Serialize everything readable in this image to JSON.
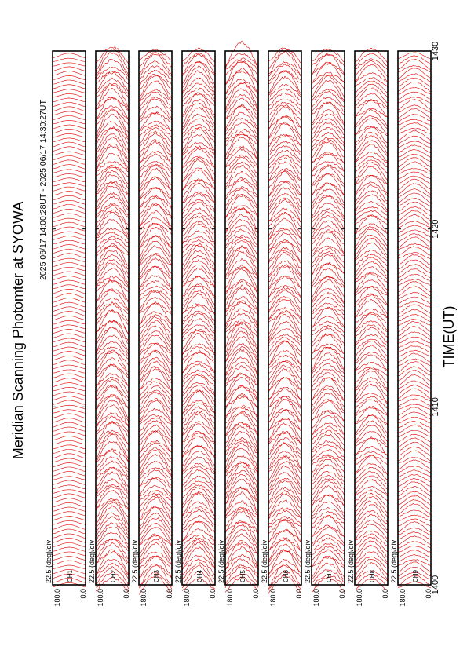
{
  "chart_data": {
    "type": "line",
    "title": "Meridian Scanning Photomter at SYOWA",
    "xlabel": "TIME(UT)",
    "time_range": "2025 06/17 14:00:28UT - 2025 06/17 14:30:27UT",
    "x_ticks": [
      "1400",
      "1410",
      "1420",
      "1430"
    ],
    "xlim": [
      1400,
      1430
    ],
    "ylim": [
      0.0,
      180.0
    ],
    "y_ticks": [
      "180.0",
      "0.0"
    ],
    "scale_label": "22.5 (deg)/div",
    "trace_color": "#e00000",
    "panels": [
      {
        "channel": "1",
        "amplitude": 0.05,
        "peak": 0.5
      },
      {
        "channel": "2",
        "amplitude": 0.55,
        "peak": 0.85
      },
      {
        "channel": "3",
        "amplitude": 0.5,
        "peak": 0.75
      },
      {
        "channel": "4",
        "amplitude": 0.5,
        "peak": 0.8
      },
      {
        "channel": "5",
        "amplitude": 0.6,
        "peak": 0.9
      },
      {
        "channel": "6",
        "amplitude": 0.55,
        "peak": 0.8
      },
      {
        "channel": "7",
        "amplitude": 0.5,
        "peak": 0.8
      },
      {
        "channel": "8",
        "amplitude": 0.4,
        "peak": 0.75
      },
      {
        "channel": "9",
        "amplitude": 0.2,
        "peak": 0.6
      }
    ]
  }
}
